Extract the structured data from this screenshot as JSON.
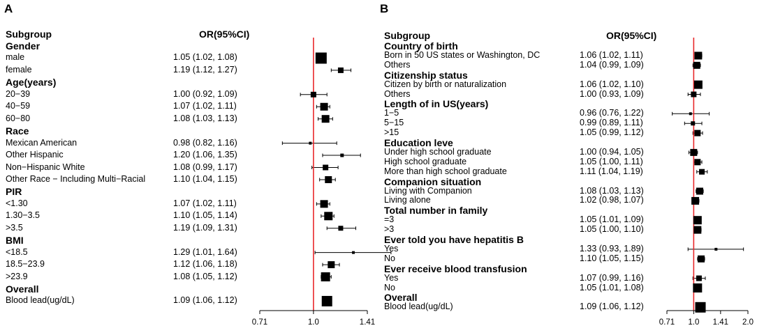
{
  "chart_data": [
    {
      "type": "forest",
      "panel": "A",
      "header": {
        "subgroup": "Subgroup",
        "or": "OR(95%CI)"
      },
      "reference_line": 1.0,
      "reference_color": "#e8282b",
      "x_scale": "log",
      "xlim": [
        0.71,
        1.41
      ],
      "ticks": [
        {
          "value": 0.71,
          "label": "0.71"
        },
        {
          "value": 1.0,
          "label": "1.0"
        },
        {
          "value": 1.41,
          "label": "1.41"
        }
      ],
      "rows": [
        {
          "type": "group",
          "label": "Gender"
        },
        {
          "type": "item",
          "label": "male",
          "or_text": "1.05 (1.02, 1.08)",
          "or": 1.05,
          "lo": 1.02,
          "hi": 1.08,
          "weight": 16
        },
        {
          "type": "item",
          "label": "female",
          "or_text": "1.19 (1.12, 1.27)",
          "or": 1.19,
          "lo": 1.12,
          "hi": 1.27,
          "weight": 8
        },
        {
          "type": "group",
          "label": "Age(years)"
        },
        {
          "type": "item",
          "label": "20−39",
          "or_text": "1.00 (0.92, 1.09)",
          "or": 1.0,
          "lo": 0.92,
          "hi": 1.09,
          "weight": 8
        },
        {
          "type": "item",
          "label": "40−59",
          "or_text": "1.07 (1.02, 1.11)",
          "or": 1.07,
          "lo": 1.02,
          "hi": 1.11,
          "weight": 11
        },
        {
          "type": "item",
          "label": "60−80",
          "or_text": "1.08 (1.03, 1.13)",
          "or": 1.08,
          "lo": 1.03,
          "hi": 1.13,
          "weight": 11
        },
        {
          "type": "group",
          "label": "Race"
        },
        {
          "type": "item",
          "label": "Mexican American",
          "or_text": "0.98 (0.82, 1.16)",
          "or": 0.98,
          "lo": 0.82,
          "hi": 1.16,
          "weight": 4
        },
        {
          "type": "item",
          "label": "Other Hispanic",
          "or_text": "1.20 (1.06, 1.35)",
          "or": 1.2,
          "lo": 1.06,
          "hi": 1.35,
          "weight": 5
        },
        {
          "type": "item",
          "label": "Non−Hispanic White",
          "or_text": "1.08 (0.99, 1.17)",
          "or": 1.08,
          "lo": 0.99,
          "hi": 1.17,
          "weight": 8
        },
        {
          "type": "item",
          "label": "Other Race − Including Multi−Racial",
          "or_text": "1.10 (1.04, 1.15)",
          "or": 1.1,
          "lo": 1.04,
          "hi": 1.15,
          "weight": 10
        },
        {
          "type": "group",
          "label": "PIR"
        },
        {
          "type": "item",
          "label": "<1.30",
          "or_text": "1.07 (1.02, 1.11)",
          "or": 1.07,
          "lo": 1.02,
          "hi": 1.11,
          "weight": 11
        },
        {
          "type": "item",
          "label": "1.30−3.5",
          "or_text": "1.10 (1.05, 1.14)",
          "or": 1.1,
          "lo": 1.05,
          "hi": 1.14,
          "weight": 12
        },
        {
          "type": "item",
          "label": ">3.5",
          "or_text": "1.19 (1.09, 1.31)",
          "or": 1.19,
          "lo": 1.09,
          "hi": 1.31,
          "weight": 7
        },
        {
          "type": "group",
          "label": "BMI"
        },
        {
          "type": "item",
          "label": "<18.5",
          "or_text": "1.29 (1.01, 1.64)",
          "or": 1.29,
          "lo": 1.01,
          "hi": 1.64,
          "weight": 4
        },
        {
          "type": "item",
          "label": "18.5−23.9",
          "or_text": "1.12 (1.06, 1.18)",
          "or": 1.12,
          "lo": 1.06,
          "hi": 1.18,
          "weight": 10
        },
        {
          "type": "item",
          "label": ">23.9",
          "or_text": "1.08 (1.05, 1.12)",
          "or": 1.08,
          "lo": 1.05,
          "hi": 1.12,
          "weight": 13
        },
        {
          "type": "group",
          "label": "Overall"
        },
        {
          "type": "item",
          "label": "Blood lead(ug/dL)",
          "or_text": "1.09 (1.06, 1.12)",
          "or": 1.09,
          "lo": 1.06,
          "hi": 1.12,
          "weight": 15
        }
      ]
    },
    {
      "type": "forest",
      "panel": "B",
      "header": {
        "subgroup": "Subgroup",
        "or": "OR(95%CI)"
      },
      "reference_line": 1.0,
      "reference_color": "#e8282b",
      "x_scale": "log",
      "xlim": [
        0.71,
        2.0
      ],
      "ticks": [
        {
          "value": 0.71,
          "label": "0.71"
        },
        {
          "value": 1.0,
          "label": "1.0"
        },
        {
          "value": 1.41,
          "label": "1.41"
        },
        {
          "value": 2.0,
          "label": "2.0"
        }
      ],
      "rows": [
        {
          "type": "group",
          "label": "Country of birth"
        },
        {
          "type": "item",
          "label": "Born in 50 US states or Washington, DC",
          "or_text": "1.06 (1.02, 1.11)",
          "or": 1.06,
          "lo": 1.02,
          "hi": 1.11,
          "weight": 11
        },
        {
          "type": "item",
          "label": "Others",
          "or_text": "1.04 (0.99, 1.09)",
          "or": 1.04,
          "lo": 0.99,
          "hi": 1.09,
          "weight": 10
        },
        {
          "type": "group",
          "label": "Citizenship status"
        },
        {
          "type": "item",
          "label": "Citizen by birth or naturalization",
          "or_text": "1.06 (1.02, 1.10)",
          "or": 1.06,
          "lo": 1.02,
          "hi": 1.1,
          "weight": 12
        },
        {
          "type": "item",
          "label": "Others",
          "or_text": "1.00 (0.93, 1.09)",
          "or": 1.0,
          "lo": 0.93,
          "hi": 1.09,
          "weight": 8
        },
        {
          "type": "group",
          "label": "Length of in US(years)"
        },
        {
          "type": "item",
          "label": "1−5",
          "or_text": "0.96 (0.76, 1.22)",
          "or": 0.96,
          "lo": 0.76,
          "hi": 1.22,
          "weight": 4
        },
        {
          "type": "item",
          "label": "5−15",
          "or_text": "0.99 (0.89, 1.11)",
          "or": 0.99,
          "lo": 0.89,
          "hi": 1.11,
          "weight": 6
        },
        {
          "type": "item",
          "label": ">15",
          "or_text": "1.05 (0.99, 1.12)",
          "or": 1.05,
          "lo": 0.99,
          "hi": 1.12,
          "weight": 9
        },
        {
          "type": "group",
          "label": "Education leve"
        },
        {
          "type": "item",
          "label": "Under high school graduate",
          "or_text": "1.00 (0.94, 1.05)",
          "or": 1.0,
          "lo": 0.94,
          "hi": 1.05,
          "weight": 10
        },
        {
          "type": "item",
          "label": "High school graduate",
          "or_text": "1.05 (1.00, 1.11)",
          "or": 1.05,
          "lo": 1.0,
          "hi": 1.11,
          "weight": 9
        },
        {
          "type": "item",
          "label": "More than high school graduate",
          "or_text": "1.11 (1.04, 1.19)",
          "or": 1.11,
          "lo": 1.04,
          "hi": 1.19,
          "weight": 8
        },
        {
          "type": "group",
          "label": "Companion situation"
        },
        {
          "type": "item",
          "label": "Living with Companion",
          "or_text": "1.08 (1.03, 1.13)",
          "or": 1.08,
          "lo": 1.03,
          "hi": 1.13,
          "weight": 10
        },
        {
          "type": "item",
          "label": "Living alone",
          "or_text": "1.02 (0.98, 1.07)",
          "or": 1.02,
          "lo": 0.98,
          "hi": 1.07,
          "weight": 11
        },
        {
          "type": "group",
          "label": "Total number in family"
        },
        {
          "type": "item",
          "label": "=3",
          "or_text": "1.05 (1.01, 1.09)",
          "or": 1.05,
          "lo": 1.01,
          "hi": 1.09,
          "weight": 12
        },
        {
          "type": "item",
          "label": ">3",
          "or_text": "1.05 (1.00, 1.10)",
          "or": 1.05,
          "lo": 1.0,
          "hi": 1.1,
          "weight": 11
        },
        {
          "type": "group",
          "label": "Ever told you have hepatitis B"
        },
        {
          "type": "item",
          "label": "Yes",
          "or_text": "1.33 (0.93, 1.89)",
          "or": 1.33,
          "lo": 0.93,
          "hi": 1.89,
          "weight": 4
        },
        {
          "type": "item",
          "label": "No",
          "or_text": "1.10 (1.05, 1.15)",
          "or": 1.1,
          "lo": 1.05,
          "hi": 1.15,
          "weight": 10
        },
        {
          "type": "group",
          "label": "Ever receive blood transfusion"
        },
        {
          "type": "item",
          "label": "Yes",
          "or_text": "1.07 (0.99, 1.16)",
          "or": 1.07,
          "lo": 0.99,
          "hi": 1.16,
          "weight": 8
        },
        {
          "type": "item",
          "label": "No",
          "or_text": "1.05 (1.01, 1.08)",
          "or": 1.05,
          "lo": 1.01,
          "hi": 1.08,
          "weight": 13
        },
        {
          "type": "group",
          "label": "Overall"
        },
        {
          "type": "item",
          "label": "Blood lead(ug/dL)",
          "or_text": "1.09 (1.06, 1.12)",
          "or": 1.09,
          "lo": 1.06,
          "hi": 1.12,
          "weight": 15
        }
      ]
    }
  ]
}
